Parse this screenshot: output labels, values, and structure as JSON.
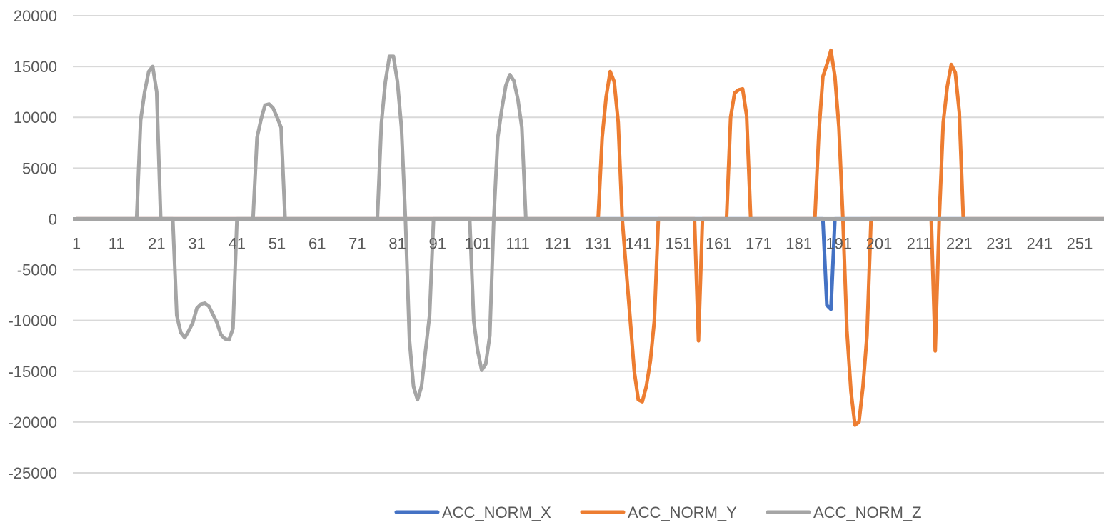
{
  "chart_data": {
    "type": "line",
    "title": "",
    "xlabel": "",
    "ylabel": "",
    "ylim": [
      -25000,
      20000
    ],
    "yticks": [
      20000,
      15000,
      10000,
      5000,
      0,
      -5000,
      -10000,
      -15000,
      -20000,
      -25000
    ],
    "ytick_labels": [
      "20000",
      "15000",
      "10000",
      "5000",
      "0",
      "-5000",
      "-10000",
      "-15000",
      "-20000",
      "-25000"
    ],
    "xlim": [
      1,
      259
    ],
    "xticks": [
      1,
      11,
      21,
      31,
      41,
      51,
      61,
      71,
      81,
      91,
      101,
      111,
      121,
      131,
      141,
      151,
      161,
      171,
      181,
      191,
      201,
      211,
      221,
      231,
      241,
      251
    ],
    "xtick_labels": [
      "1",
      "11",
      "21",
      "31",
      "41",
      "51",
      "61",
      "71",
      "81",
      "91",
      "101",
      "111",
      "121",
      "131",
      "141",
      "151",
      "161",
      "171",
      "181",
      "191",
      "201",
      "211",
      "221",
      "231",
      "241",
      "251"
    ],
    "grid": true,
    "legend_position": "bottom",
    "series": [
      {
        "name": "ACC_NORM_X",
        "color": "#4472C4",
        "points": [
          [
            1,
            0
          ],
          [
            187,
            0
          ],
          [
            188,
            -8500
          ],
          [
            189,
            -8900
          ],
          [
            190,
            0
          ],
          [
            259,
            0
          ]
        ]
      },
      {
        "name": "ACC_NORM_Y",
        "color": "#ED7D31",
        "points": [
          [
            1,
            0
          ],
          [
            131,
            0
          ],
          [
            132,
            8000
          ],
          [
            133,
            12000
          ],
          [
            134,
            14500
          ],
          [
            135,
            13500
          ],
          [
            136,
            9500
          ],
          [
            137,
            0
          ],
          [
            138,
            -5000
          ],
          [
            139,
            -10000
          ],
          [
            140,
            -15000
          ],
          [
            141,
            -17800
          ],
          [
            142,
            -18000
          ],
          [
            143,
            -16500
          ],
          [
            144,
            -14000
          ],
          [
            145,
            -10000
          ],
          [
            146,
            0
          ],
          [
            155,
            0
          ],
          [
            156,
            -12000
          ],
          [
            157,
            0
          ],
          [
            163,
            0
          ],
          [
            164,
            10000
          ],
          [
            165,
            12400
          ],
          [
            166,
            12700
          ],
          [
            167,
            12800
          ],
          [
            168,
            10200
          ],
          [
            169,
            0
          ],
          [
            185,
            0
          ],
          [
            186,
            8500
          ],
          [
            187,
            14000
          ],
          [
            188,
            15200
          ],
          [
            189,
            16600
          ],
          [
            190,
            14000
          ],
          [
            191,
            9000
          ],
          [
            192,
            0
          ],
          [
            193,
            -11000
          ],
          [
            194,
            -17000
          ],
          [
            195,
            -20300
          ],
          [
            196,
            -20000
          ],
          [
            197,
            -16500
          ],
          [
            198,
            -11500
          ],
          [
            199,
            0
          ],
          [
            214,
            0
          ],
          [
            215,
            -13000
          ],
          [
            216,
            0
          ],
          [
            217,
            9500
          ],
          [
            218,
            13000
          ],
          [
            219,
            15200
          ],
          [
            220,
            14400
          ],
          [
            221,
            10500
          ],
          [
            222,
            0
          ],
          [
            259,
            0
          ]
        ]
      },
      {
        "name": "ACC_NORM_Z",
        "color": "#A5A5A5",
        "points": [
          [
            1,
            0
          ],
          [
            16,
            0
          ],
          [
            17,
            9700
          ],
          [
            18,
            12500
          ],
          [
            19,
            14500
          ],
          [
            20,
            15000
          ],
          [
            21,
            12500
          ],
          [
            22,
            0
          ],
          [
            25,
            0
          ],
          [
            26,
            -9500
          ],
          [
            27,
            -11200
          ],
          [
            28,
            -11700
          ],
          [
            29,
            -11000
          ],
          [
            30,
            -10200
          ],
          [
            31,
            -8800
          ],
          [
            32,
            -8400
          ],
          [
            33,
            -8300
          ],
          [
            34,
            -8600
          ],
          [
            35,
            -9400
          ],
          [
            36,
            -10200
          ],
          [
            37,
            -11400
          ],
          [
            38,
            -11800
          ],
          [
            39,
            -11900
          ],
          [
            40,
            -10800
          ],
          [
            41,
            0
          ],
          [
            45,
            0
          ],
          [
            46,
            8000
          ],
          [
            47,
            9800
          ],
          [
            48,
            11200
          ],
          [
            49,
            11300
          ],
          [
            50,
            10900
          ],
          [
            51,
            10000
          ],
          [
            52,
            9000
          ],
          [
            53,
            0
          ],
          [
            76,
            0
          ],
          [
            77,
            9400
          ],
          [
            78,
            13500
          ],
          [
            79,
            16000
          ],
          [
            80,
            16000
          ],
          [
            81,
            13500
          ],
          [
            82,
            9000
          ],
          [
            83,
            0
          ],
          [
            84,
            -12000
          ],
          [
            85,
            -16500
          ],
          [
            86,
            -17800
          ],
          [
            87,
            -16500
          ],
          [
            88,
            -13000
          ],
          [
            89,
            -9500
          ],
          [
            90,
            0
          ],
          [
            99,
            0
          ],
          [
            100,
            -10000
          ],
          [
            101,
            -13000
          ],
          [
            102,
            -14900
          ],
          [
            103,
            -14300
          ],
          [
            104,
            -11500
          ],
          [
            105,
            0
          ],
          [
            106,
            8000
          ],
          [
            107,
            10800
          ],
          [
            108,
            13100
          ],
          [
            109,
            14200
          ],
          [
            110,
            13600
          ],
          [
            111,
            11800
          ],
          [
            112,
            9000
          ],
          [
            113,
            0
          ],
          [
            259,
            0
          ]
        ]
      }
    ]
  }
}
